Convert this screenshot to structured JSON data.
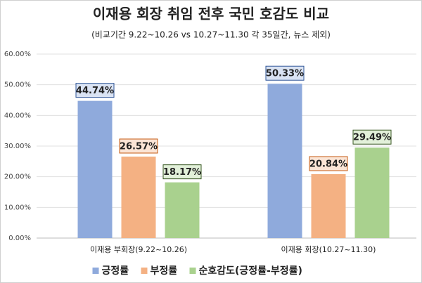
{
  "chart_data": {
    "type": "bar",
    "title": "이재용 회장 취임 전후 국민 호감도 비교",
    "subtitle": "(비교기간 9.22~10.26 vs 10.27~11.30 각 35일간, 뉴스 제외)",
    "categories": [
      "이재용 부회장(9.22~10.26)",
      "이재용 회장(10.27~11.30)"
    ],
    "series": [
      {
        "name": "긍정률",
        "color": "#8faadc",
        "values": [
          44.74,
          50.33
        ],
        "value_labels": [
          "44.74%",
          "50.33%"
        ]
      },
      {
        "name": "부정률",
        "color": "#f4b183",
        "values": [
          26.57,
          20.84
        ],
        "value_labels": [
          "26.57%",
          "20.84%"
        ]
      },
      {
        "name": "순호감도(긍정률-부정률)",
        "color": "#a9d18e",
        "values": [
          18.17,
          29.49
        ],
        "value_labels": [
          "18.17%",
          "29.49%"
        ]
      }
    ],
    "ylim": [
      0,
      60
    ],
    "yticks": [
      {
        "value": 0,
        "label": "0.00%"
      },
      {
        "value": 10,
        "label": "10.00%"
      },
      {
        "value": 20,
        "label": "20.00%"
      },
      {
        "value": 30,
        "label": "30.00%"
      },
      {
        "value": 40,
        "label": "40.00%"
      },
      {
        "value": 50,
        "label": "50.00%"
      },
      {
        "value": 60,
        "label": "60.00%"
      }
    ],
    "grid": true,
    "legend": "bottom"
  }
}
